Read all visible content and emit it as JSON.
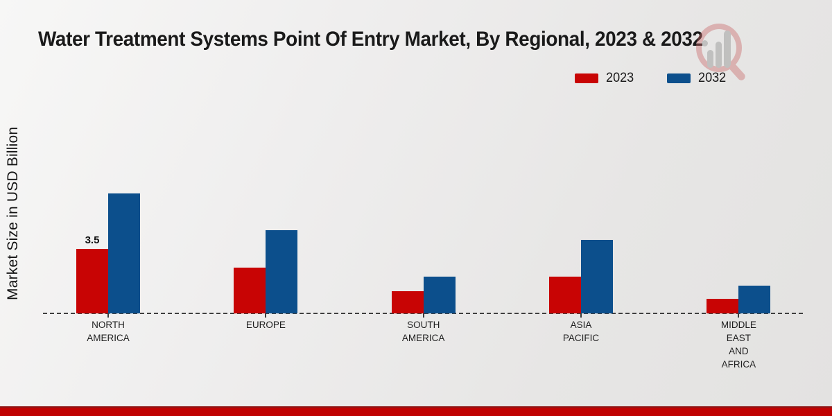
{
  "title": "Water Treatment Systems Point Of Entry Market, By Regional, 2023 & 2032",
  "ylabel": "Market Size in USD Billion",
  "legend": [
    {
      "label": "2023",
      "color": "#c80404"
    },
    {
      "label": "2032",
      "color": "#0c4f8c"
    }
  ],
  "colors": {
    "series_2023": "#c80404",
    "series_2032": "#0c4f8c",
    "baseline": "#3f3f3f",
    "bottom_band": "#c00202",
    "title_text": "#1a1a1a"
  },
  "watermark": "market-research-logo",
  "chart_data": {
    "type": "bar",
    "title": "Water Treatment Systems Point Of Entry Market, By Regional, 2023 & 2032",
    "xlabel": "",
    "ylabel": "Market Size in USD Billion",
    "categories": [
      "NORTH AMERICA",
      "EUROPE",
      "SOUTH AMERICA",
      "ASIA PACIFIC",
      "MIDDLE EAST AND AFRICA"
    ],
    "category_label_lines": [
      [
        "NORTH",
        "AMERICA"
      ],
      [
        "EUROPE"
      ],
      [
        "SOUTH",
        "AMERICA"
      ],
      [
        "ASIA",
        "PACIFIC"
      ],
      [
        "MIDDLE",
        "EAST",
        "AND",
        "AFRICA"
      ]
    ],
    "series": [
      {
        "name": "2023",
        "color": "#c80404",
        "values": [
          3.5,
          2.5,
          1.2,
          2.0,
          0.8
        ]
      },
      {
        "name": "2032",
        "color": "#0c4f8c",
        "values": [
          6.5,
          4.5,
          2.0,
          4.0,
          1.5
        ]
      }
    ],
    "annotations": [
      {
        "series": "2023",
        "category": "NORTH AMERICA",
        "text": "3.5"
      }
    ],
    "ylim": [
      0,
      7.2
    ],
    "grid": false,
    "axis_style": "dashed-baseline-only",
    "legend_position": "top-right"
  }
}
